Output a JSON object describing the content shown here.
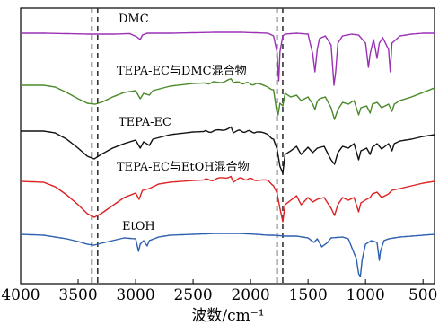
{
  "chart_data": {
    "type": "line",
    "title": "",
    "xlabel": "波数/cm⁻¹",
    "ylabel": "",
    "xlim": [
      4000,
      400
    ],
    "x_reversed": true,
    "xticks": [
      4000,
      3500,
      3000,
      2500,
      2000,
      1500,
      1000,
      500
    ],
    "xtick_labels": [
      "4000",
      "3500",
      "3000",
      "2500",
      "2000",
      "1500",
      "1000",
      "500"
    ],
    "grid": false,
    "legend": "none",
    "reference_lines": [
      3380,
      3330,
      1770,
      1720
    ],
    "series": [
      {
        "name": "DMC",
        "color": "#9B30B5",
        "points": [
          [
            4000,
            37
          ],
          [
            3800,
            37
          ],
          [
            3600,
            37.5
          ],
          [
            3400,
            38
          ],
          [
            3200,
            38
          ],
          [
            3050,
            37.5
          ],
          [
            2990,
            41
          ],
          [
            2960,
            44
          ],
          [
            2940,
            39
          ],
          [
            2900,
            37
          ],
          [
            2700,
            37
          ],
          [
            2500,
            36.5
          ],
          [
            2300,
            36
          ],
          [
            2100,
            36
          ],
          [
            1950,
            36.5
          ],
          [
            1850,
            37
          ],
          [
            1800,
            40
          ],
          [
            1770,
            58
          ],
          [
            1755,
            90
          ],
          [
            1745,
            58
          ],
          [
            1720,
            40
          ],
          [
            1700,
            38
          ],
          [
            1600,
            37
          ],
          [
            1500,
            38
          ],
          [
            1460,
            60
          ],
          [
            1440,
            80
          ],
          [
            1420,
            55
          ],
          [
            1400,
            43
          ],
          [
            1350,
            40
          ],
          [
            1300,
            50
          ],
          [
            1275,
            95
          ],
          [
            1260,
            80
          ],
          [
            1240,
            48
          ],
          [
            1200,
            40
          ],
          [
            1120,
            38
          ],
          [
            1060,
            39
          ],
          [
            1000,
            48
          ],
          [
            975,
            75
          ],
          [
            960,
            60
          ],
          [
            930,
            44
          ],
          [
            900,
            65
          ],
          [
            880,
            48
          ],
          [
            850,
            42
          ],
          [
            800,
            55
          ],
          [
            785,
            80
          ],
          [
            770,
            48
          ],
          [
            700,
            40
          ],
          [
            600,
            38
          ],
          [
            500,
            37
          ],
          [
            400,
            37
          ]
        ]
      },
      {
        "name": "TEPA-EC与DMC混合物",
        "color": "#4A8A2A",
        "points": [
          [
            4000,
            95
          ],
          [
            3800,
            95
          ],
          [
            3700,
            97
          ],
          [
            3600,
            103
          ],
          [
            3500,
            110
          ],
          [
            3420,
            115
          ],
          [
            3350,
            116
          ],
          [
            3280,
            113
          ],
          [
            3200,
            108
          ],
          [
            3100,
            103
          ],
          [
            3000,
            101
          ],
          [
            2960,
            110
          ],
          [
            2930,
            104
          ],
          [
            2880,
            106
          ],
          [
            2850,
            101
          ],
          [
            2700,
            96
          ],
          [
            2500,
            93
          ],
          [
            2300,
            92
          ],
          [
            2170,
            89
          ],
          [
            2150,
            93
          ],
          [
            2100,
            92
          ],
          [
            1950,
            94
          ],
          [
            1850,
            96
          ],
          [
            1800,
            100
          ],
          [
            1775,
            122
          ],
          [
            1760,
            128
          ],
          [
            1745,
            115
          ],
          [
            1720,
            118
          ],
          [
            1700,
            104
          ],
          [
            1650,
            108
          ],
          [
            1600,
            106
          ],
          [
            1560,
            112
          ],
          [
            1500,
            108
          ],
          [
            1460,
            116
          ],
          [
            1440,
            122
          ],
          [
            1420,
            113
          ],
          [
            1400,
            110
          ],
          [
            1350,
            108
          ],
          [
            1300,
            120
          ],
          [
            1270,
            133
          ],
          [
            1240,
            122
          ],
          [
            1200,
            114
          ],
          [
            1150,
            116
          ],
          [
            1100,
            112
          ],
          [
            1060,
            128
          ],
          [
            1040,
            120
          ],
          [
            990,
            118
          ],
          [
            960,
            126
          ],
          [
            940,
            116
          ],
          [
            900,
            114
          ],
          [
            860,
            120
          ],
          [
            800,
            116
          ],
          [
            770,
            124
          ],
          [
            750,
            116
          ],
          [
            700,
            112
          ],
          [
            600,
            108
          ],
          [
            500,
            103
          ],
          [
            400,
            98
          ]
        ]
      },
      {
        "name": "TEPA-EC",
        "color": "#111111",
        "points": [
          [
            4000,
            146
          ],
          [
            3800,
            146
          ],
          [
            3700,
            148
          ],
          [
            3600,
            155
          ],
          [
            3500,
            165
          ],
          [
            3420,
            174
          ],
          [
            3360,
            177
          ],
          [
            3300,
            172
          ],
          [
            3200,
            165
          ],
          [
            3100,
            160
          ],
          [
            3000,
            156
          ],
          [
            2960,
            165
          ],
          [
            2930,
            158
          ],
          [
            2880,
            162
          ],
          [
            2850,
            155
          ],
          [
            2700,
            150
          ],
          [
            2500,
            147
          ],
          [
            2300,
            146
          ],
          [
            2170,
            142
          ],
          [
            2150,
            148
          ],
          [
            2100,
            146
          ],
          [
            1950,
            147
          ],
          [
            1850,
            150
          ],
          [
            1800,
            155
          ],
          [
            1770,
            166
          ],
          [
            1745,
            185
          ],
          [
            1720,
            193
          ],
          [
            1700,
            172
          ],
          [
            1650,
            168
          ],
          [
            1600,
            163
          ],
          [
            1560,
            172
          ],
          [
            1500,
            164
          ],
          [
            1460,
            170
          ],
          [
            1420,
            165
          ],
          [
            1360,
            163
          ],
          [
            1300,
            178
          ],
          [
            1270,
            183
          ],
          [
            1240,
            170
          ],
          [
            1200,
            163
          ],
          [
            1150,
            165
          ],
          [
            1100,
            160
          ],
          [
            1060,
            178
          ],
          [
            1040,
            168
          ],
          [
            990,
            165
          ],
          [
            960,
            172
          ],
          [
            940,
            164
          ],
          [
            900,
            160
          ],
          [
            860,
            166
          ],
          [
            800,
            160
          ],
          [
            770,
            168
          ],
          [
            750,
            160
          ],
          [
            700,
            157
          ],
          [
            600,
            155
          ],
          [
            500,
            152
          ],
          [
            400,
            150
          ]
        ]
      },
      {
        "name": "TEPA-EC与EtOH混合物",
        "color": "#DD2222",
        "points": [
          [
            4000,
            202
          ],
          [
            3800,
            203
          ],
          [
            3700,
            208
          ],
          [
            3600,
            217
          ],
          [
            3500,
            228
          ],
          [
            3420,
            238
          ],
          [
            3360,
            242
          ],
          [
            3300,
            238
          ],
          [
            3200,
            229
          ],
          [
            3100,
            220
          ],
          [
            3000,
            215
          ],
          [
            2970,
            222
          ],
          [
            2940,
            212
          ],
          [
            2880,
            210
          ],
          [
            2800,
            205
          ],
          [
            2700,
            203
          ],
          [
            2500,
            201
          ],
          [
            2300,
            200
          ],
          [
            2170,
            196
          ],
          [
            2150,
            202
          ],
          [
            2100,
            199
          ],
          [
            1950,
            200
          ],
          [
            1850,
            202
          ],
          [
            1800,
            207
          ],
          [
            1770,
            215
          ],
          [
            1745,
            232
          ],
          [
            1720,
            247
          ],
          [
            1700,
            228
          ],
          [
            1650,
            223
          ],
          [
            1600,
            218
          ],
          [
            1560,
            228
          ],
          [
            1500,
            220
          ],
          [
            1460,
            225
          ],
          [
            1420,
            222
          ],
          [
            1360,
            220
          ],
          [
            1300,
            232
          ],
          [
            1270,
            240
          ],
          [
            1240,
            228
          ],
          [
            1200,
            220
          ],
          [
            1150,
            223
          ],
          [
            1100,
            220
          ],
          [
            1060,
            236
          ],
          [
            1040,
            226
          ],
          [
            990,
            222
          ],
          [
            960,
            220
          ],
          [
            940,
            216
          ],
          [
            900,
            214
          ],
          [
            860,
            220
          ],
          [
            800,
            216
          ],
          [
            770,
            212
          ],
          [
            700,
            210
          ],
          [
            600,
            207
          ],
          [
            500,
            204
          ],
          [
            400,
            202
          ]
        ]
      },
      {
        "name": "EtOH",
        "color": "#2C5FAF",
        "points": [
          [
            4000,
            261
          ],
          [
            3800,
            262
          ],
          [
            3700,
            264
          ],
          [
            3600,
            266
          ],
          [
            3500,
            269
          ],
          [
            3420,
            272
          ],
          [
            3360,
            273
          ],
          [
            3300,
            271
          ],
          [
            3200,
            268
          ],
          [
            3100,
            265
          ],
          [
            3000,
            266
          ],
          [
            2975,
            280
          ],
          [
            2960,
            272
          ],
          [
            2930,
            268
          ],
          [
            2900,
            274
          ],
          [
            2880,
            268
          ],
          [
            2800,
            264
          ],
          [
            2700,
            262
          ],
          [
            2500,
            261
          ],
          [
            2300,
            260
          ],
          [
            2100,
            260
          ],
          [
            1950,
            261
          ],
          [
            1850,
            262
          ],
          [
            1800,
            262
          ],
          [
            1700,
            263
          ],
          [
            1600,
            263
          ],
          [
            1500,
            265
          ],
          [
            1450,
            270
          ],
          [
            1420,
            266
          ],
          [
            1380,
            275
          ],
          [
            1330,
            270
          ],
          [
            1300,
            265
          ],
          [
            1200,
            264
          ],
          [
            1150,
            266
          ],
          [
            1090,
            285
          ],
          [
            1080,
            288
          ],
          [
            1060,
            305
          ],
          [
            1045,
            308
          ],
          [
            1030,
            290
          ],
          [
            1000,
            272
          ],
          [
            950,
            268
          ],
          [
            900,
            270
          ],
          [
            880,
            290
          ],
          [
            870,
            280
          ],
          [
            840,
            268
          ],
          [
            800,
            266
          ],
          [
            700,
            264
          ],
          [
            600,
            263
          ],
          [
            500,
            262
          ],
          [
            400,
            261
          ]
        ]
      }
    ]
  },
  "labels": {
    "dmc": "DMC",
    "tepa_ec_dmc": "TEPA-EC与DMC混合物",
    "tepa_ec": "TEPA-EC",
    "tepa_ec_etoh": "TEPA-EC与EtOH混合物",
    "etoh": "EtOH"
  }
}
